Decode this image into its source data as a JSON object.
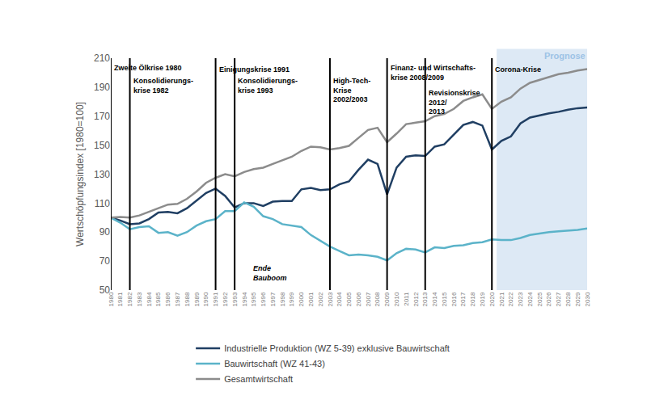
{
  "chart_data": {
    "type": "line",
    "y_label": "Wertschöpfungsindex [1980=100]",
    "x": [
      1980,
      1981,
      1982,
      1983,
      1984,
      1985,
      1986,
      1987,
      1988,
      1989,
      1990,
      1991,
      1992,
      1993,
      1994,
      1995,
      1996,
      1997,
      1998,
      1999,
      2000,
      2001,
      2002,
      2003,
      2004,
      2005,
      2006,
      2007,
      2008,
      2009,
      2010,
      2011,
      2012,
      2013,
      2014,
      2015,
      2016,
      2017,
      2018,
      2019,
      2020,
      2021,
      2022,
      2023,
      2024,
      2025,
      2026,
      2027,
      2028,
      2029,
      2030
    ],
    "series": [
      {
        "name": "Industrielle Produktion (WZ 5-39) exklusive Bauwirtschaft",
        "color": "#203f63",
        "values": [
          100,
          98,
          95.5,
          96,
          99,
          103.5,
          104,
          103,
          106.5,
          111.5,
          117,
          120,
          115,
          107,
          110,
          110,
          108,
          111,
          111.5,
          111.5,
          119.5,
          120.5,
          119,
          119.5,
          123,
          125,
          133,
          140,
          137,
          116,
          134.5,
          142,
          143,
          142.5,
          149,
          150.5,
          157,
          164,
          166,
          163.5,
          147,
          153,
          156,
          165,
          169,
          170.5,
          172,
          173,
          174.5,
          175.5,
          176
        ]
      },
      {
        "name": "Bauwirtschaft (WZ 41-43)",
        "color": "#5bb3c9",
        "values": [
          100,
          96.5,
          92,
          93.5,
          94,
          89.5,
          90,
          87.5,
          90,
          94.5,
          97.5,
          99,
          104.5,
          104.5,
          110.5,
          107.5,
          101,
          99,
          95.5,
          94.5,
          93.5,
          88,
          84,
          80,
          77,
          74,
          74.5,
          74,
          73,
          70.5,
          75.5,
          78.5,
          78,
          76,
          79.5,
          79,
          80.5,
          81,
          82.5,
          83,
          85,
          84.5,
          84.5,
          86,
          88,
          89,
          90,
          90.5,
          91,
          91.5,
          92.5
        ]
      },
      {
        "name": "Gesamtwirtschaft",
        "color": "#8c8c8c",
        "values": [
          100,
          100.5,
          100,
          101.5,
          104,
          106.5,
          109,
          109.5,
          113,
          118,
          124,
          127.5,
          130,
          128.5,
          131.5,
          133.5,
          134.5,
          137,
          139.5,
          142,
          146,
          149,
          148.5,
          147,
          148,
          149.5,
          155,
          160.5,
          162,
          152,
          158,
          164.5,
          165.5,
          166.5,
          170,
          171.5,
          175,
          180.5,
          183,
          185,
          175,
          180,
          183,
          189,
          193,
          195,
          197,
          199,
          200,
          201.5,
          202.5
        ]
      }
    ],
    "xlim": [
      1980,
      2030
    ],
    "xticks": [
      1980,
      1981,
      1982,
      1983,
      1984,
      1985,
      1986,
      1987,
      1988,
      1989,
      1990,
      1991,
      1992,
      1993,
      1994,
      1995,
      1996,
      1997,
      1998,
      1999,
      2000,
      2001,
      2002,
      2003,
      2004,
      2005,
      2006,
      2007,
      2008,
      2009,
      2010,
      2011,
      2012,
      2013,
      2014,
      2015,
      2016,
      2017,
      2018,
      2019,
      2020,
      2021,
      2022,
      2023,
      2024,
      2025,
      2026,
      2027,
      2028,
      2029,
      2030
    ],
    "ylim": [
      50,
      210
    ],
    "yticks": [
      50,
      70,
      90,
      110,
      130,
      150,
      170,
      190,
      210
    ],
    "grid": false,
    "legend": "bottom",
    "events": [
      {
        "x": 1980,
        "y": 207,
        "text": "Zweite Ölkrise 1980"
      },
      {
        "x": 1982,
        "y": 198.5,
        "text": "Konsolidierungs-\nkrise 1982"
      },
      {
        "x": 1991,
        "y": 206,
        "text": "Einigungskrise 1991"
      },
      {
        "x": 1993,
        "y": 198.5,
        "text": "Konsolidierungs-\nkrise 1993"
      },
      {
        "x": 2003,
        "y": 198.5,
        "text": "High-Tech-\nKrise\n2002/2003"
      },
      {
        "x": 2009,
        "y": 207,
        "text": "Finanz- und Wirtschafts-\nkrise 2008/2009"
      },
      {
        "x": 2013,
        "y": 190,
        "text": "Revisionskrise\n2012/\n2013"
      },
      {
        "x": 2020,
        "y": 206,
        "text": "Corona-Krise"
      }
    ],
    "forecast": {
      "label": "Prognose",
      "x": [
        2020.5,
        2030
      ]
    },
    "annotations": [
      {
        "text": "Ende\nBauboom",
        "x": 1994.8,
        "y": 69
      }
    ]
  }
}
